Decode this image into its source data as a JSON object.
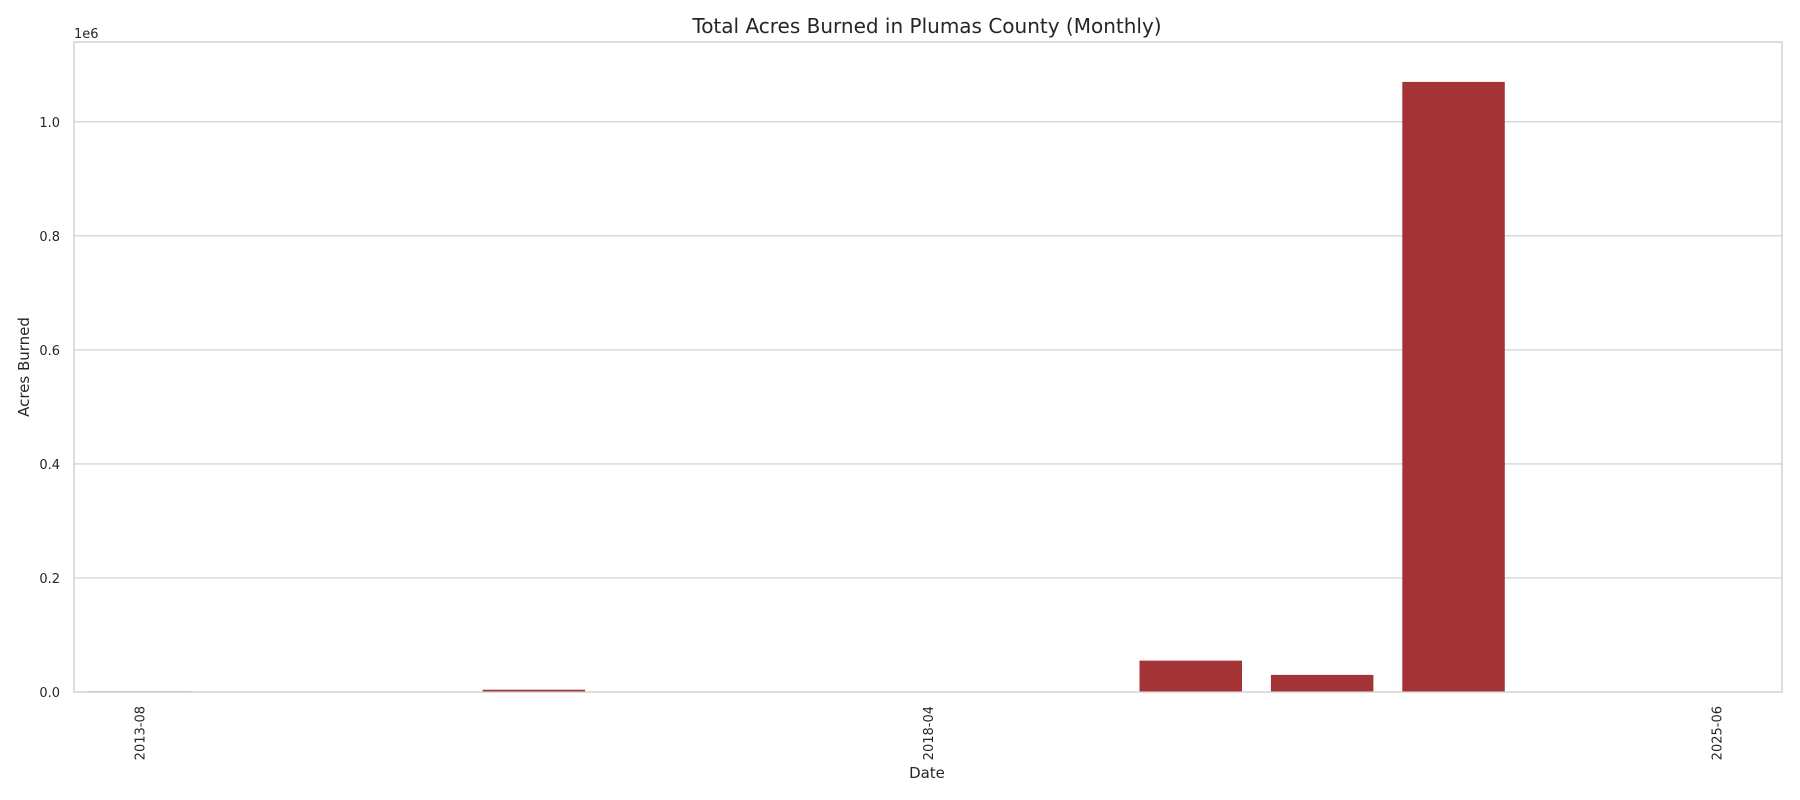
{
  "chart_data": {
    "type": "bar",
    "title": "Total Acres Burned in Plumas County (Monthly)",
    "xlabel": "Date",
    "ylabel": "Acres Burned",
    "y_offset_text": "1e6",
    "ylim": [
      0,
      1140000
    ],
    "yticks": [
      0,
      200000,
      400000,
      600000,
      800000,
      1000000
    ],
    "ytick_labels": [
      "0.0",
      "0.2",
      "0.4",
      "0.6",
      "0.8",
      "1.0"
    ],
    "categories": [
      "2013-08",
      "",
      "",
      "",
      "",
      "",
      "2018-04",
      "",
      "",
      "",
      "",
      "",
      "2025-06"
    ],
    "values": [
      1200,
      300,
      400,
      4000,
      500,
      600,
      900,
      300,
      55000,
      30000,
      1070000,
      800,
      200
    ],
    "bar_color": "#a33335",
    "grid": true,
    "legend": "none"
  }
}
